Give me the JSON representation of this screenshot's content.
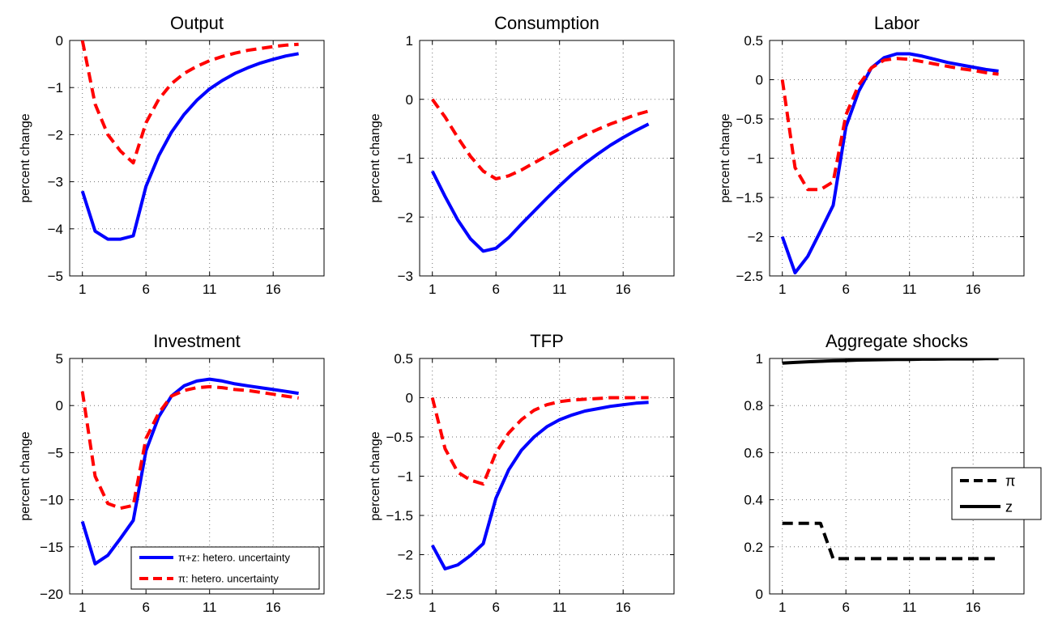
{
  "chart_data": [
    {
      "type": "line",
      "title": "Output",
      "xlabel": "",
      "ylabel": "percent change",
      "xlim": [
        0,
        20
      ],
      "ylim": [
        -5,
        0
      ],
      "xticks": [
        1,
        6,
        11,
        16
      ],
      "yticks": [
        -5,
        -4,
        -3,
        -2,
        -1,
        0
      ],
      "ytick_labels": [
        "−5",
        "−4",
        "−3",
        "−2",
        "−1",
        "0"
      ],
      "grid": true,
      "x": [
        1,
        2,
        3,
        4,
        5,
        6,
        7,
        8,
        9,
        10,
        11,
        12,
        13,
        14,
        15,
        16,
        17,
        18
      ],
      "series": [
        {
          "name": "π+z: hetero. uncertainty",
          "color": "#0000ff",
          "style": "solid",
          "values": [
            -3.2,
            -4.05,
            -4.22,
            -4.22,
            -4.15,
            -3.1,
            -2.45,
            -1.95,
            -1.57,
            -1.27,
            -1.03,
            -0.85,
            -0.7,
            -0.58,
            -0.48,
            -0.4,
            -0.33,
            -0.28
          ]
        },
        {
          "name": "π: hetero. uncertainty",
          "color": "#ff0000",
          "style": "dashed",
          "values": [
            0,
            -1.35,
            -2.0,
            -2.35,
            -2.6,
            -1.75,
            -1.25,
            -0.92,
            -0.7,
            -0.55,
            -0.43,
            -0.34,
            -0.27,
            -0.21,
            -0.17,
            -0.13,
            -0.1,
            -0.08
          ]
        }
      ],
      "legend": null
    },
    {
      "type": "line",
      "title": "Consumption",
      "xlabel": "",
      "ylabel": "percent change",
      "xlim": [
        0,
        20
      ],
      "ylim": [
        -3,
        1
      ],
      "xticks": [
        1,
        6,
        11,
        16
      ],
      "yticks": [
        -3,
        -2,
        -1,
        0,
        1
      ],
      "ytick_labels": [
        "−3",
        "−2",
        "−1",
        "0",
        "1"
      ],
      "grid": true,
      "x": [
        1,
        2,
        3,
        4,
        5,
        6,
        7,
        8,
        9,
        10,
        11,
        12,
        13,
        14,
        15,
        16,
        17,
        18
      ],
      "series": [
        {
          "name": "π+z: hetero. uncertainty",
          "color": "#0000ff",
          "style": "solid",
          "values": [
            -1.22,
            -1.65,
            -2.05,
            -2.37,
            -2.58,
            -2.53,
            -2.35,
            -2.12,
            -1.9,
            -1.68,
            -1.47,
            -1.27,
            -1.09,
            -0.93,
            -0.78,
            -0.65,
            -0.53,
            -0.42
          ]
        },
        {
          "name": "π: hetero. uncertainty",
          "color": "#ff0000",
          "style": "dashed",
          "values": [
            0,
            -0.3,
            -0.65,
            -0.97,
            -1.22,
            -1.35,
            -1.3,
            -1.2,
            -1.08,
            -0.96,
            -0.84,
            -0.72,
            -0.61,
            -0.51,
            -0.42,
            -0.34,
            -0.26,
            -0.2
          ]
        }
      ],
      "legend": null
    },
    {
      "type": "line",
      "title": "Labor",
      "xlabel": "",
      "ylabel": "percent change",
      "xlim": [
        0,
        20
      ],
      "ylim": [
        -2.5,
        0.5
      ],
      "xticks": [
        1,
        6,
        11,
        16
      ],
      "yticks": [
        -2.5,
        -2,
        -1.5,
        -1,
        -0.5,
        0,
        0.5
      ],
      "ytick_labels": [
        "−2.5",
        "−2",
        "−1.5",
        "−1",
        "−0.5",
        "0",
        "0.5"
      ],
      "grid": true,
      "x": [
        1,
        2,
        3,
        4,
        5,
        6,
        7,
        8,
        9,
        10,
        11,
        12,
        13,
        14,
        15,
        16,
        17,
        18
      ],
      "series": [
        {
          "name": "π+z: hetero. uncertainty",
          "color": "#0000ff",
          "style": "solid",
          "values": [
            -2.0,
            -2.46,
            -2.25,
            -1.93,
            -1.6,
            -0.6,
            -0.15,
            0.15,
            0.28,
            0.33,
            0.33,
            0.3,
            0.26,
            0.22,
            0.19,
            0.16,
            0.13,
            0.11
          ]
        },
        {
          "name": "π: hetero. uncertainty",
          "color": "#ff0000",
          "style": "dashed",
          "values": [
            0,
            -1.12,
            -1.4,
            -1.4,
            -1.3,
            -0.45,
            -0.07,
            0.15,
            0.25,
            0.27,
            0.26,
            0.23,
            0.2,
            0.17,
            0.14,
            0.12,
            0.09,
            0.07
          ]
        }
      ],
      "legend": null
    },
    {
      "type": "line",
      "title": "Investment",
      "xlabel": "",
      "ylabel": "percent change",
      "xlim": [
        0,
        20
      ],
      "ylim": [
        -20,
        5
      ],
      "xticks": [
        1,
        6,
        11,
        16
      ],
      "yticks": [
        -20,
        -15,
        -10,
        -5,
        0,
        5
      ],
      "ytick_labels": [
        "−20",
        "−15",
        "−10",
        "−5",
        "0",
        "5"
      ],
      "grid": true,
      "x": [
        1,
        2,
        3,
        4,
        5,
        6,
        7,
        8,
        9,
        10,
        11,
        12,
        13,
        14,
        15,
        16,
        17,
        18
      ],
      "series": [
        {
          "name": "π+z: hetero. uncertainty",
          "color": "#0000ff",
          "style": "solid",
          "values": [
            -12.3,
            -16.8,
            -15.9,
            -14.1,
            -12.2,
            -4.8,
            -1.2,
            1.0,
            2.1,
            2.6,
            2.8,
            2.6,
            2.3,
            2.1,
            1.9,
            1.7,
            1.5,
            1.3
          ]
        },
        {
          "name": "π: hetero. uncertainty",
          "color": "#ff0000",
          "style": "dashed",
          "values": [
            1.5,
            -7.5,
            -10.4,
            -10.9,
            -10.6,
            -3.5,
            -0.8,
            1.0,
            1.6,
            1.9,
            2.0,
            1.9,
            1.7,
            1.6,
            1.4,
            1.2,
            1.0,
            0.8
          ]
        }
      ],
      "legend": {
        "location": "lower-right",
        "entries": [
          "π+z: hetero. uncertainty",
          "π: hetero. uncertainty"
        ]
      }
    },
    {
      "type": "line",
      "title": "TFP",
      "xlabel": "",
      "ylabel": "percent change",
      "xlim": [
        0,
        20
      ],
      "ylim": [
        -2.5,
        0.5
      ],
      "xticks": [
        1,
        6,
        11,
        16
      ],
      "yticks": [
        -2.5,
        -2,
        -1.5,
        -1,
        -0.5,
        0,
        0.5
      ],
      "ytick_labels": [
        "−2.5",
        "−2",
        "−1.5",
        "−1",
        "−0.5",
        "0",
        "0.5"
      ],
      "grid": true,
      "x": [
        1,
        2,
        3,
        4,
        5,
        6,
        7,
        8,
        9,
        10,
        11,
        12,
        13,
        14,
        15,
        16,
        17,
        18
      ],
      "series": [
        {
          "name": "π+z: hetero. uncertainty",
          "color": "#0000ff",
          "style": "solid",
          "values": [
            -1.88,
            -2.18,
            -2.13,
            -2.01,
            -1.86,
            -1.28,
            -0.92,
            -0.67,
            -0.5,
            -0.37,
            -0.28,
            -0.22,
            -0.17,
            -0.14,
            -0.11,
            -0.09,
            -0.07,
            -0.06
          ]
        },
        {
          "name": "π: hetero. uncertainty",
          "color": "#ff0000",
          "style": "dashed",
          "values": [
            0,
            -0.65,
            -0.95,
            -1.05,
            -1.1,
            -0.7,
            -0.45,
            -0.28,
            -0.16,
            -0.09,
            -0.05,
            -0.03,
            -0.02,
            -0.01,
            0,
            0,
            0,
            0
          ]
        }
      ],
      "legend": null
    },
    {
      "type": "line",
      "title": "Aggregate shocks",
      "xlabel": "",
      "ylabel": "",
      "xlim": [
        0,
        20
      ],
      "ylim": [
        0,
        1
      ],
      "xticks": [
        1,
        6,
        11,
        16
      ],
      "yticks": [
        0,
        0.2,
        0.4,
        0.6,
        0.8,
        1
      ],
      "ytick_labels": [
        "0",
        "0.2",
        "0.4",
        "0.6",
        "0.8",
        "1"
      ],
      "grid": true,
      "x": [
        1,
        2,
        3,
        4,
        5,
        6,
        7,
        8,
        9,
        10,
        11,
        12,
        13,
        14,
        15,
        16,
        17,
        18
      ],
      "series": [
        {
          "name": "π",
          "color": "#000000",
          "style": "dashed",
          "values": [
            0.3,
            0.3,
            0.3,
            0.3,
            0.15,
            0.15,
            0.15,
            0.15,
            0.15,
            0.15,
            0.15,
            0.15,
            0.15,
            0.15,
            0.15,
            0.15,
            0.15,
            0.15
          ]
        },
        {
          "name": "z",
          "color": "#000000",
          "style": "solid",
          "values": [
            0.98,
            0.983,
            0.986,
            0.988,
            0.99,
            0.991,
            0.993,
            0.994,
            0.995,
            0.996,
            0.996,
            0.997,
            0.997,
            0.998,
            0.998,
            0.998,
            0.999,
            0.999
          ]
        }
      ],
      "legend": {
        "location": "middle-right",
        "entries": [
          "π",
          "z"
        ]
      }
    }
  ]
}
